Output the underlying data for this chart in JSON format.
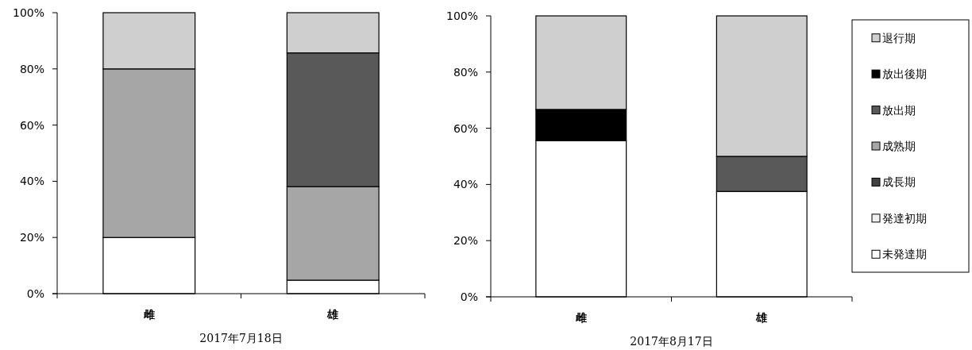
{
  "chart_data": [
    {
      "type": "bar",
      "stacked": true,
      "categories": [
        "雌",
        "雄"
      ],
      "xlabel": "2017年7月18日",
      "ylim": [
        0,
        100
      ],
      "yticks": [
        {
          "value": 0,
          "label": "0%"
        },
        {
          "value": 20,
          "label": "20%"
        },
        {
          "value": 40,
          "label": "40%"
        },
        {
          "value": 60,
          "label": "60%"
        },
        {
          "value": 80,
          "label": "80%"
        },
        {
          "value": 100,
          "label": "100%"
        }
      ],
      "series": [
        {
          "color": "#ffffff",
          "values": [
            20,
            4.8
          ]
        },
        {
          "color": "#f0f0f0",
          "values": [
            0,
            0
          ]
        },
        {
          "color": "#404040",
          "values": [
            0,
            0
          ]
        },
        {
          "color": "#a6a6a6",
          "values": [
            60,
            33.3
          ]
        },
        {
          "color": "#595959",
          "values": [
            0,
            47.6
          ]
        },
        {
          "color": "#000000",
          "values": [
            0,
            0
          ]
        },
        {
          "color": "#d0cfd0",
          "values": [
            20,
            14.3
          ]
        }
      ]
    },
    {
      "type": "bar",
      "stacked": true,
      "categories": [
        "雌",
        "雄"
      ],
      "xlabel": "2017年8月17日",
      "ylim": [
        0,
        100
      ],
      "legend": "right",
      "yticks": [
        {
          "value": 0,
          "label": "0%"
        },
        {
          "value": 20,
          "label": "20%"
        },
        {
          "value": 40,
          "label": "40%"
        },
        {
          "value": 60,
          "label": "60%"
        },
        {
          "value": 80,
          "label": "80%"
        },
        {
          "value": 100,
          "label": "100%"
        }
      ],
      "series": [
        {
          "name": "未発達期",
          "color": "#ffffff",
          "values": [
            55.6,
            37.5
          ]
        },
        {
          "name": "発達初期",
          "color": "#f0f0f0",
          "values": [
            0,
            0
          ]
        },
        {
          "name": "成長期",
          "color": "#404040",
          "values": [
            0,
            0
          ]
        },
        {
          "name": "成熟期",
          "color": "#a6a6a6",
          "values": [
            0,
            0
          ]
        },
        {
          "name": "放出期",
          "color": "#595959",
          "values": [
            0,
            12.5
          ]
        },
        {
          "name": "放出後期",
          "color": "#000000",
          "values": [
            11.1,
            0
          ]
        },
        {
          "name": "退行期",
          "color": "#d0cfd0",
          "values": [
            33.3,
            50
          ]
        }
      ]
    }
  ]
}
